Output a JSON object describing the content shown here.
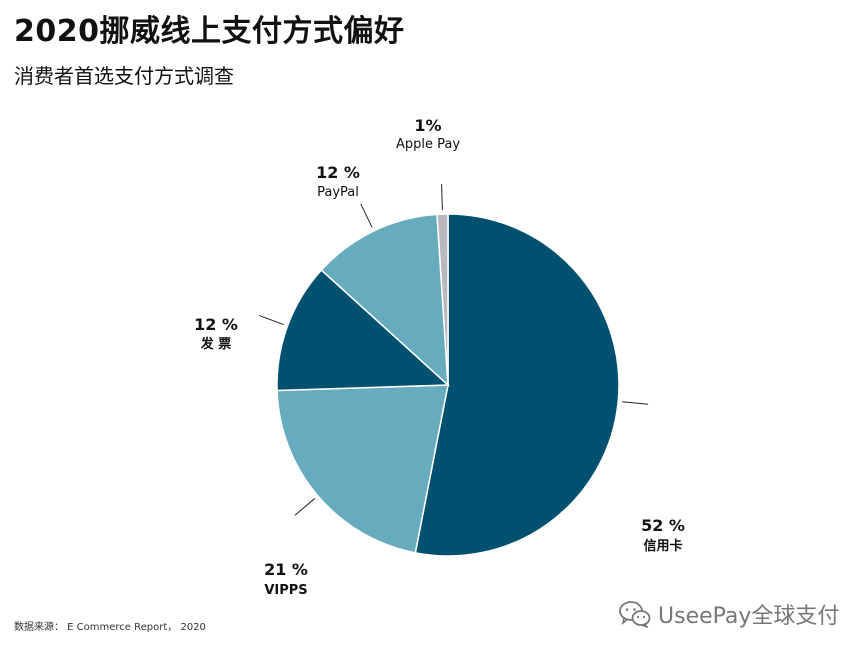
{
  "header": {
    "title": "2020挪威线上支付方式偏好",
    "subtitle": "消费者首选支付方式调查"
  },
  "footer": {
    "source": "数据来源： E Commerce Report， 2020",
    "watermark": "UseePay全球支付",
    "watermark_icon": "wechat-icon"
  },
  "colors": {
    "dark": "#00506F",
    "light": "#67ACBE",
    "gray": "#B7B9BC"
  },
  "chart_data": {
    "type": "pie",
    "title": "2020挪威线上支付方式偏好",
    "subtitle": "消费者首选支付方式调查",
    "slices": [
      {
        "label": "信用卡",
        "value": 52,
        "display": "52 %",
        "color": "#00506F"
      },
      {
        "label": "VIPPS",
        "value": 21,
        "display": "21 %",
        "color": "#67ACBE"
      },
      {
        "label": "发 票",
        "value": 12,
        "display": "12 %",
        "color": "#00506F"
      },
      {
        "label": "PayPal",
        "value": 12,
        "display": "12 %",
        "color": "#67ACBE"
      },
      {
        "label": "Apple Pay",
        "value": 1,
        "display": "1%",
        "color": "#B7B9BC"
      }
    ]
  }
}
